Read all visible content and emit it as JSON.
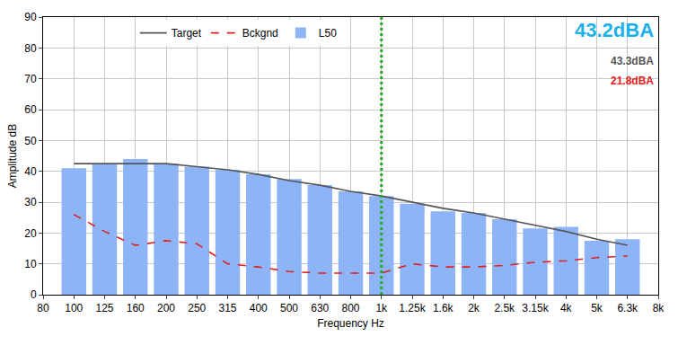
{
  "chart_data": {
    "type": "bar",
    "x_label": "Frequency Hz",
    "y_label": "Amplitude dB",
    "categories": [
      "80",
      "100",
      "125",
      "160",
      "200",
      "250",
      "315",
      "400",
      "500",
      "630",
      "800",
      "1k",
      "1.25k",
      "1.6k",
      "2k",
      "2.5k",
      "3.15k",
      "4k",
      "5k",
      "6.3k",
      "8k"
    ],
    "series": [
      {
        "name": "L50",
        "type": "bar",
        "color": "#8db4f7",
        "values": [
          null,
          41,
          42.5,
          44,
          42.5,
          41.5,
          40.5,
          39,
          37.5,
          35.5,
          33.5,
          32,
          29.5,
          27,
          26.5,
          24.5,
          21.5,
          22,
          17.5,
          18,
          null
        ]
      },
      {
        "name": "Target",
        "type": "line",
        "color": "#555555",
        "line_style": "solid",
        "values": [
          null,
          42.5,
          42.5,
          42.5,
          42.5,
          41.5,
          40.5,
          39,
          37,
          35.5,
          33.5,
          32,
          30,
          28,
          26.5,
          24.5,
          22.5,
          20.5,
          18,
          16,
          null
        ]
      },
      {
        "name": "Bckgnd",
        "type": "line",
        "color": "#e02020",
        "line_style": "dashed",
        "values": [
          null,
          26,
          20.5,
          16,
          17.5,
          16.5,
          10,
          9,
          7.5,
          7,
          7,
          7,
          10,
          9,
          9,
          9.5,
          10.5,
          11,
          12,
          12.5,
          null
        ]
      }
    ],
    "legend_order": [
      "Target",
      "Bckgnd",
      "L50"
    ],
    "ylim": [
      0,
      90
    ],
    "yticks": [
      0,
      10,
      20,
      30,
      40,
      50,
      60,
      70,
      80,
      90
    ],
    "grid": true,
    "legend": "top",
    "reference_line": {
      "x": "1k",
      "color": "#22aa22",
      "line_style": "dotted"
    },
    "annotations": [
      {
        "text": "43.2dBA",
        "color": "#1ab0e8"
      },
      {
        "text": "43.3dBA",
        "color": "#555555"
      },
      {
        "text": "21.8dBA",
        "color": "#e02020"
      }
    ]
  }
}
